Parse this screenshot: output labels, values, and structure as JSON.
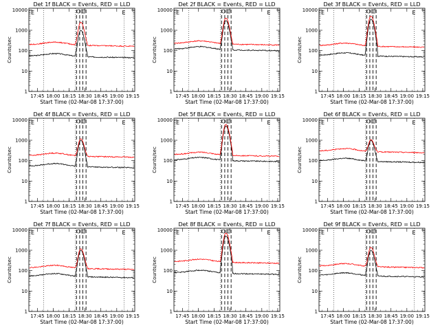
{
  "figure": {
    "ylabel": "Counts/sec",
    "xlabel": "Start Time (02-Mar-08 17:37:00)",
    "x_tick_labels": [
      "17:45",
      "18:00",
      "18:15",
      "18:30",
      "18:45",
      "19:00",
      "19:15"
    ],
    "y_tick_labels": [
      "1",
      "10",
      "100",
      "1000",
      "10000"
    ],
    "marker_labels": [
      "E",
      "E"
    ],
    "colors": {
      "events": "#000000",
      "lld": "#ff0000"
    }
  },
  "chart_data": [
    {
      "type": "line",
      "title": "Det 1f BLACK = Events, RED = LLD",
      "ylim": [
        1,
        12000
      ],
      "log_y": true,
      "xlim": [
        "17:37",
        "19:17"
      ],
      "series": [
        {
          "name": "Events",
          "color": "#000000",
          "base": 55,
          "peak": 1000
        },
        {
          "name": "LLD",
          "color": "#ff0000",
          "base": 200,
          "peak": 2500
        }
      ]
    },
    {
      "type": "line",
      "title": "Det 2f BLACK = Events, RED = LLD",
      "ylim": [
        1,
        12000
      ],
      "log_y": true,
      "xlim": [
        "17:37",
        "19:17"
      ],
      "series": [
        {
          "name": "Events",
          "color": "#000000",
          "base": 120,
          "peak": 3000
        },
        {
          "name": "LLD",
          "color": "#ff0000",
          "base": 230,
          "peak": 4000
        }
      ]
    },
    {
      "type": "line",
      "title": "Det 3f BLACK = Events, RED = LLD",
      "ylim": [
        1,
        12000
      ],
      "log_y": true,
      "xlim": [
        "17:37",
        "19:17"
      ],
      "series": [
        {
          "name": "Events",
          "color": "#000000",
          "base": 60,
          "peak": 3500
        },
        {
          "name": "LLD",
          "color": "#ff0000",
          "base": 180,
          "peak": 5000
        }
      ]
    },
    {
      "type": "line",
      "title": "Det 4f BLACK = Events, RED = LLD",
      "ylim": [
        1,
        12000
      ],
      "log_y": true,
      "xlim": [
        "17:37",
        "19:17"
      ],
      "series": [
        {
          "name": "Events",
          "color": "#000000",
          "base": 55,
          "peak": 1000
        },
        {
          "name": "LLD",
          "color": "#ff0000",
          "base": 180,
          "peak": 1200
        }
      ]
    },
    {
      "type": "line",
      "title": "Det 5f BLACK = Events, RED = LLD",
      "ylim": [
        1,
        12000
      ],
      "log_y": true,
      "xlim": [
        "17:37",
        "19:17"
      ],
      "series": [
        {
          "name": "Events",
          "color": "#000000",
          "base": 110,
          "peak": 5000
        },
        {
          "name": "LLD",
          "color": "#ff0000",
          "base": 200,
          "peak": 6000
        }
      ]
    },
    {
      "type": "line",
      "title": "Det 6f BLACK = Events, RED = LLD",
      "ylim": [
        1,
        12000
      ],
      "log_y": true,
      "xlim": [
        "17:37",
        "19:17"
      ],
      "series": [
        {
          "name": "Events",
          "color": "#000000",
          "base": 100,
          "peak": 1000
        },
        {
          "name": "LLD",
          "color": "#ff0000",
          "base": 300,
          "peak": 1100
        }
      ]
    },
    {
      "type": "line",
      "title": "Det 7f BLACK = Events, RED = LLD",
      "ylim": [
        1,
        12000
      ],
      "log_y": true,
      "xlim": [
        "17:37",
        "19:17"
      ],
      "series": [
        {
          "name": "Events",
          "color": "#000000",
          "base": 55,
          "peak": 1000
        },
        {
          "name": "LLD",
          "color": "#ff0000",
          "base": 140,
          "peak": 1200
        }
      ]
    },
    {
      "type": "line",
      "title": "Det 8f BLACK = Events, RED = LLD",
      "ylim": [
        1,
        12000
      ],
      "log_y": true,
      "xlim": [
        "17:37",
        "19:17"
      ],
      "series": [
        {
          "name": "Events",
          "color": "#000000",
          "base": 80,
          "peak": 5000
        },
        {
          "name": "LLD",
          "color": "#ff0000",
          "base": 280,
          "peak": 7000
        }
      ]
    },
    {
      "type": "line",
      "title": "Det 9f BLACK = Events, RED = LLD",
      "ylim": [
        1,
        12000
      ],
      "log_y": true,
      "xlim": [
        "17:37",
        "19:17"
      ],
      "series": [
        {
          "name": "Events",
          "color": "#000000",
          "base": 60,
          "peak": 1000
        },
        {
          "name": "LLD",
          "color": "#ff0000",
          "base": 170,
          "peak": 1400
        }
      ]
    }
  ]
}
